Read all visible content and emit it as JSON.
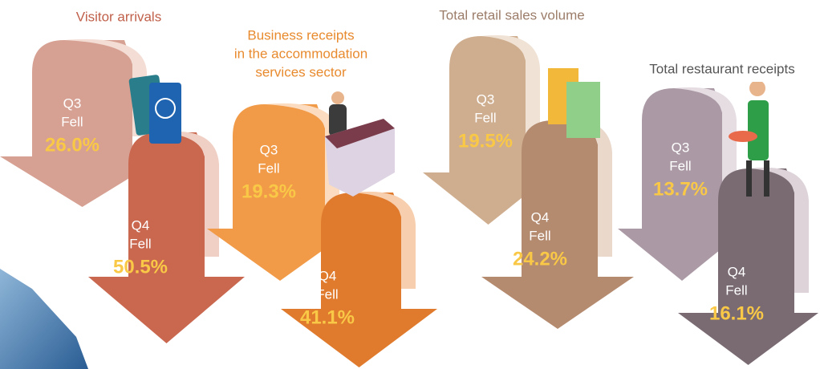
{
  "panels": [
    {
      "title": [
        "Visitor arrivals"
      ],
      "q3": {
        "label": "Q3",
        "change": "Fell",
        "value": "26.0%"
      },
      "q4": {
        "label": "Q4",
        "change": "Fell",
        "value": "50.5%"
      }
    },
    {
      "title": [
        "Business receipts",
        "in the accommodation",
        "services sector"
      ],
      "q3": {
        "label": "Q3",
        "change": "Fell",
        "value": "19.3%"
      },
      "q4": {
        "label": "Q4",
        "change": "Fell",
        "value": "41.1%"
      }
    },
    {
      "title": [
        "Total retail sales volume"
      ],
      "q3": {
        "label": "Q3",
        "change": "Fell",
        "value": "19.5%"
      },
      "q4": {
        "label": "Q4",
        "change": "Fell",
        "value": "24.2%"
      }
    },
    {
      "title": [
        "Total restaurant receipts"
      ],
      "q3": {
        "label": "Q3",
        "change": "Fell",
        "value": "13.7%"
      },
      "q4": {
        "label": "Q4",
        "change": "Fell",
        "value": "16.1%"
      }
    }
  ]
}
